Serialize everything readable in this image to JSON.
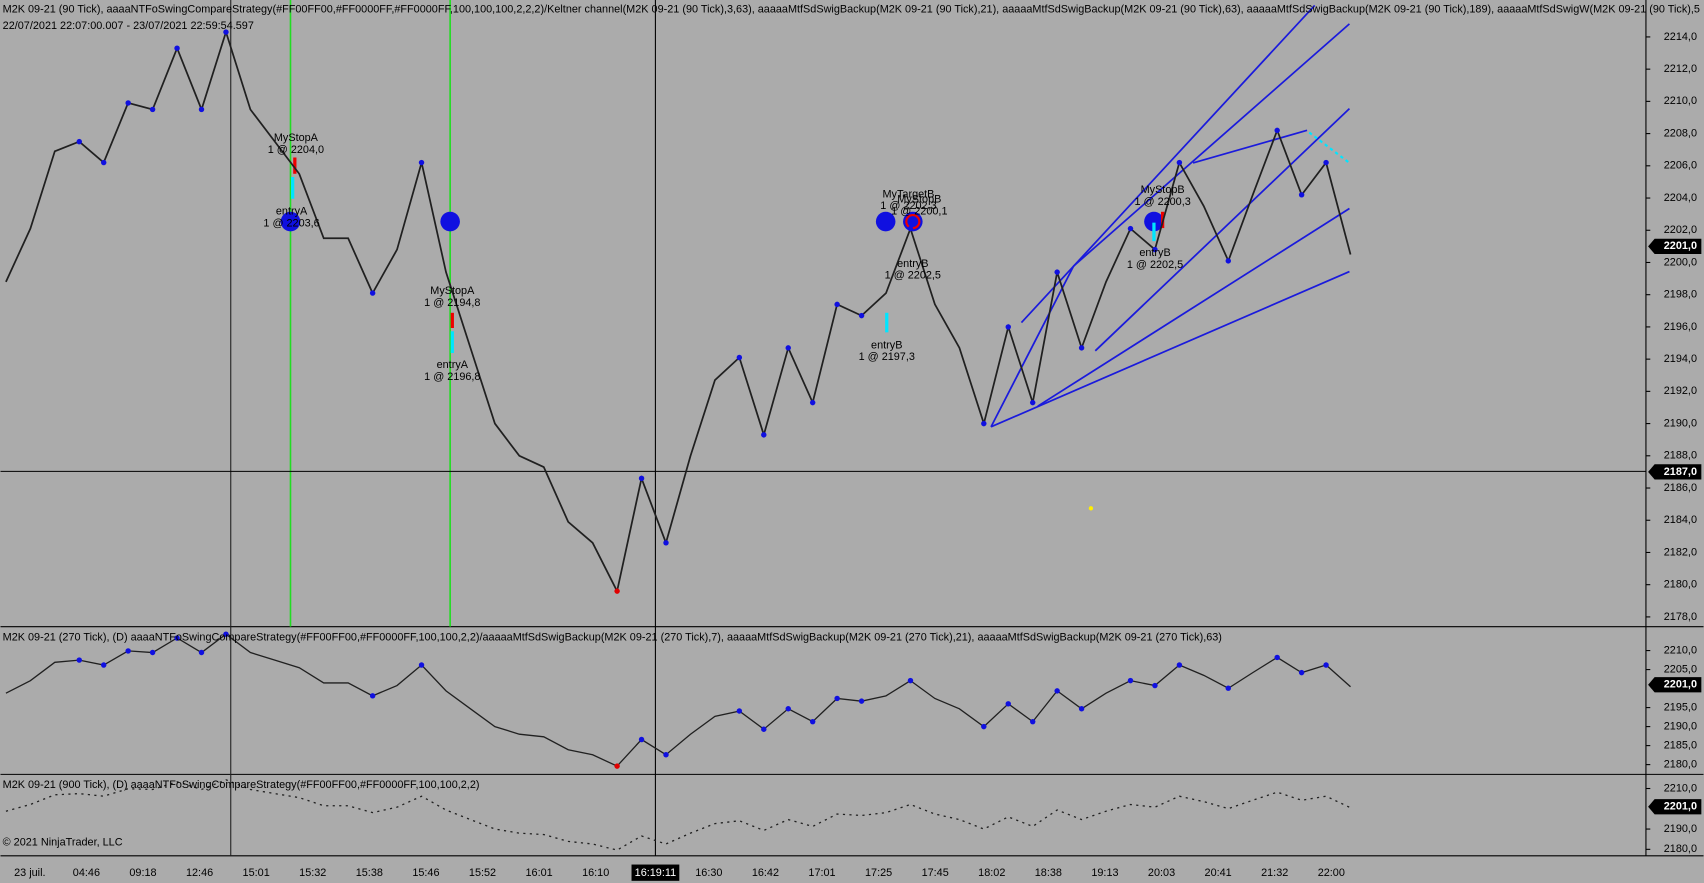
{
  "panels": [
    {
      "header": "M2K 09-21 (90 Tick), aaaaNTFoSwingCompareStrategy(#FF00FF00,#FF0000FF,#FF0000FF,100,100,100,2,2,2)/Keltner channel(M2K 09-21 (90 Tick),3,63), aaaaaMtfSdSwigBackup(M2K 09-21 (90 Tick),21), aaaaaMtfSdSwigBackup(M2K 09-21 (90 Tick),63), aaaaaMtfSdSwigBackup(M2K 09-21 (90 Tick),189), aaaaaMtfSdSwigW(M2K 09-21 (90 Tick),5",
      "range": "22/07/2021 22:07:00.007 - 23/07/2021 22:59:54.597",
      "yticks": [
        {
          "value": 2214,
          "label": "2214,0"
        },
        {
          "value": 2212,
          "label": "2212,0"
        },
        {
          "value": 2210,
          "label": "2210,0"
        },
        {
          "value": 2208,
          "label": "2208,0"
        },
        {
          "value": 2206,
          "label": "2206,0"
        },
        {
          "value": 2204,
          "label": "2204,0"
        },
        {
          "value": 2202,
          "label": "2202,0"
        },
        {
          "value": 2200,
          "label": "2200,0"
        },
        {
          "value": 2198,
          "label": "2198,0"
        },
        {
          "value": 2196,
          "label": "2196,0"
        },
        {
          "value": 2194,
          "label": "2194,0"
        },
        {
          "value": 2192,
          "label": "2192,0"
        },
        {
          "value": 2190,
          "label": "2190,0"
        },
        {
          "value": 2188,
          "label": "2188,0"
        },
        {
          "value": 2186,
          "label": "2186,0"
        },
        {
          "value": 2184,
          "label": "2184,0"
        },
        {
          "value": 2182,
          "label": "2182,0"
        },
        {
          "value": 2180,
          "label": "2180,0"
        },
        {
          "value": 2178,
          "label": "2178,0"
        }
      ],
      "last_price": {
        "value": 2201,
        "label": "2201,0"
      },
      "crosshair_price": {
        "value": 2187,
        "label": "2187,0"
      },
      "annotations": [
        {
          "label": "MyStopA",
          "detail": "1 @ 2204,0"
        },
        {
          "label": "entryA",
          "detail": "1 @ 2203,6"
        },
        {
          "label": "MyStopA",
          "detail": "1 @ 2194,8"
        },
        {
          "label": "entryA",
          "detail": "1 @ 2196,8"
        },
        {
          "label": "MyTargetB",
          "detail": "1 @ 2202,3"
        },
        {
          "label": "MyStopB",
          "detail": "1 @ 2200,1"
        },
        {
          "label": "entryB",
          "detail": "1 @ 2202,5"
        },
        {
          "label": "entryB",
          "detail": "1 @ 2197,3"
        },
        {
          "label": "MyStopB",
          "detail": "1 @ 2200,3"
        },
        {
          "label": "entryB",
          "detail": "1 @ 2202,5"
        }
      ]
    },
    {
      "header": "M2K 09-21 (270 Tick), (D) aaaaNTFoSwingCompareStrategy(#FF00FF00,#FF0000FF,100,100,2,2)/aaaaaMtfSdSwigBackup(M2K 09-21 (270 Tick),7), aaaaaMtfSdSwigBackup(M2K 09-21 (270 Tick),21), aaaaaMtfSdSwigBackup(M2K 09-21 (270 Tick),63)",
      "yticks": [
        {
          "value": 2210,
          "label": "2210,0"
        },
        {
          "value": 2205,
          "label": "2205,0"
        },
        {
          "value": 2195,
          "label": "2195,0"
        },
        {
          "value": 2190,
          "label": "2190,0"
        },
        {
          "value": 2185,
          "label": "2185,0"
        },
        {
          "value": 2180,
          "label": "2180,0"
        }
      ],
      "last_price": {
        "value": 2201,
        "label": "2201,0"
      }
    },
    {
      "header": "M2K 09-21 (900 Tick), (D) aaaaNTFoSwingCompareStrategy(#FF00FF00,#FF0000FF,100,100,2,2)",
      "yticks": [
        {
          "value": 2210,
          "label": "2210,0"
        },
        {
          "value": 2190,
          "label": "2190,0"
        },
        {
          "value": 2180,
          "label": "2180,0"
        }
      ],
      "last_price": {
        "value": 2201,
        "label": "2201,0"
      }
    }
  ],
  "prices": [
    2198.8,
    2202.1,
    2206.9,
    2207.5,
    2206.2,
    2209.9,
    2209.5,
    2213.3,
    2209.5,
    2214.3,
    2209.5,
    2207.5,
    2205.5,
    2201.5,
    2201.5,
    2198.1,
    2200.8,
    2206.2,
    2199.4,
    2194.7,
    2190.0,
    2188.0,
    2187.3,
    2183.9,
    2182.6,
    2179.6,
    2186.6,
    2182.6,
    2188.0,
    2192.7,
    2194.1,
    2189.3,
    2194.7,
    2191.3,
    2197.4,
    2196.7,
    2198.1,
    2202.1,
    2197.4,
    2194.7,
    2190.0,
    2196.0,
    2191.3,
    2199.4,
    2194.7,
    2198.8,
    2202.1,
    2200.8,
    2206.2,
    2203.5,
    2200.1,
    2204.2,
    2208.2,
    2204.2,
    2206.2,
    2200.5
  ],
  "x_labels": [
    "23 juil.",
    "04:46",
    "09:18",
    "12:46",
    "15:01",
    "15:32",
    "15:38",
    "15:46",
    "15:52",
    "16:01",
    "16:10",
    "16:30",
    "16:42",
    "17:01",
    "17:25",
    "17:45",
    "18:02",
    "18:38",
    "19:13",
    "20:03",
    "20:41",
    "21:32",
    "22:00"
  ],
  "crosshair_time": "16:19:11",
  "copyright": "© 2021 NinjaTrader, LLC"
}
